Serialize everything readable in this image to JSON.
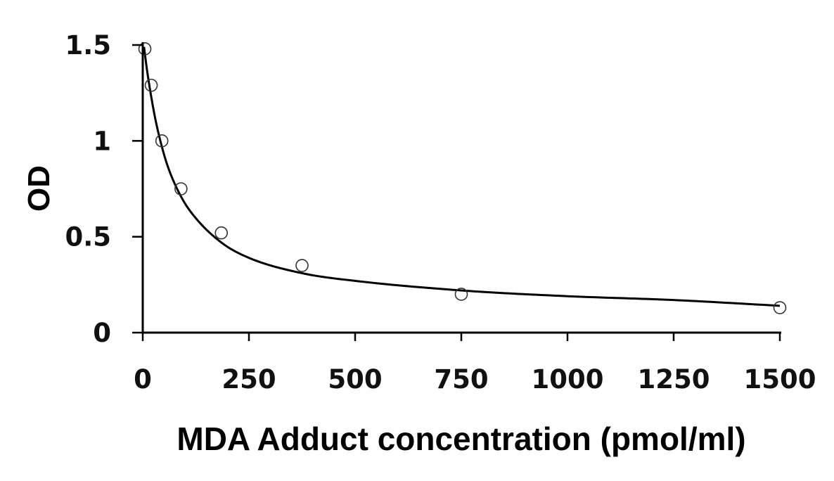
{
  "chart_data": {
    "type": "scatter",
    "title": "",
    "xlabel": "MDA Adduct concentration (pmol/ml)",
    "ylabel": "OD",
    "xlim": [
      0,
      1500
    ],
    "ylim": [
      0,
      1.5
    ],
    "x_ticks": [
      "0",
      "250",
      "500",
      "750",
      "1000",
      "1250",
      "1500"
    ],
    "y_ticks": [
      "0",
      "0.5",
      "1",
      "1.5"
    ],
    "grid": false,
    "legend": "none",
    "series": [
      {
        "marker": "open-circle",
        "x": [
          5,
          20,
          45,
          90,
          185,
          375,
          750,
          1500
        ],
        "y": [
          1.48,
          1.29,
          1.0,
          0.75,
          0.52,
          0.35,
          0.2,
          0.13
        ]
      }
    ],
    "fit_curve": {
      "x": [
        3,
        10,
        20,
        30,
        45,
        60,
        90,
        120,
        185,
        250,
        375,
        500,
        750,
        1000,
        1250,
        1500
      ],
      "y": [
        1.49,
        1.37,
        1.23,
        1.11,
        0.97,
        0.86,
        0.71,
        0.61,
        0.47,
        0.39,
        0.31,
        0.27,
        0.22,
        0.19,
        0.17,
        0.14
      ]
    }
  }
}
